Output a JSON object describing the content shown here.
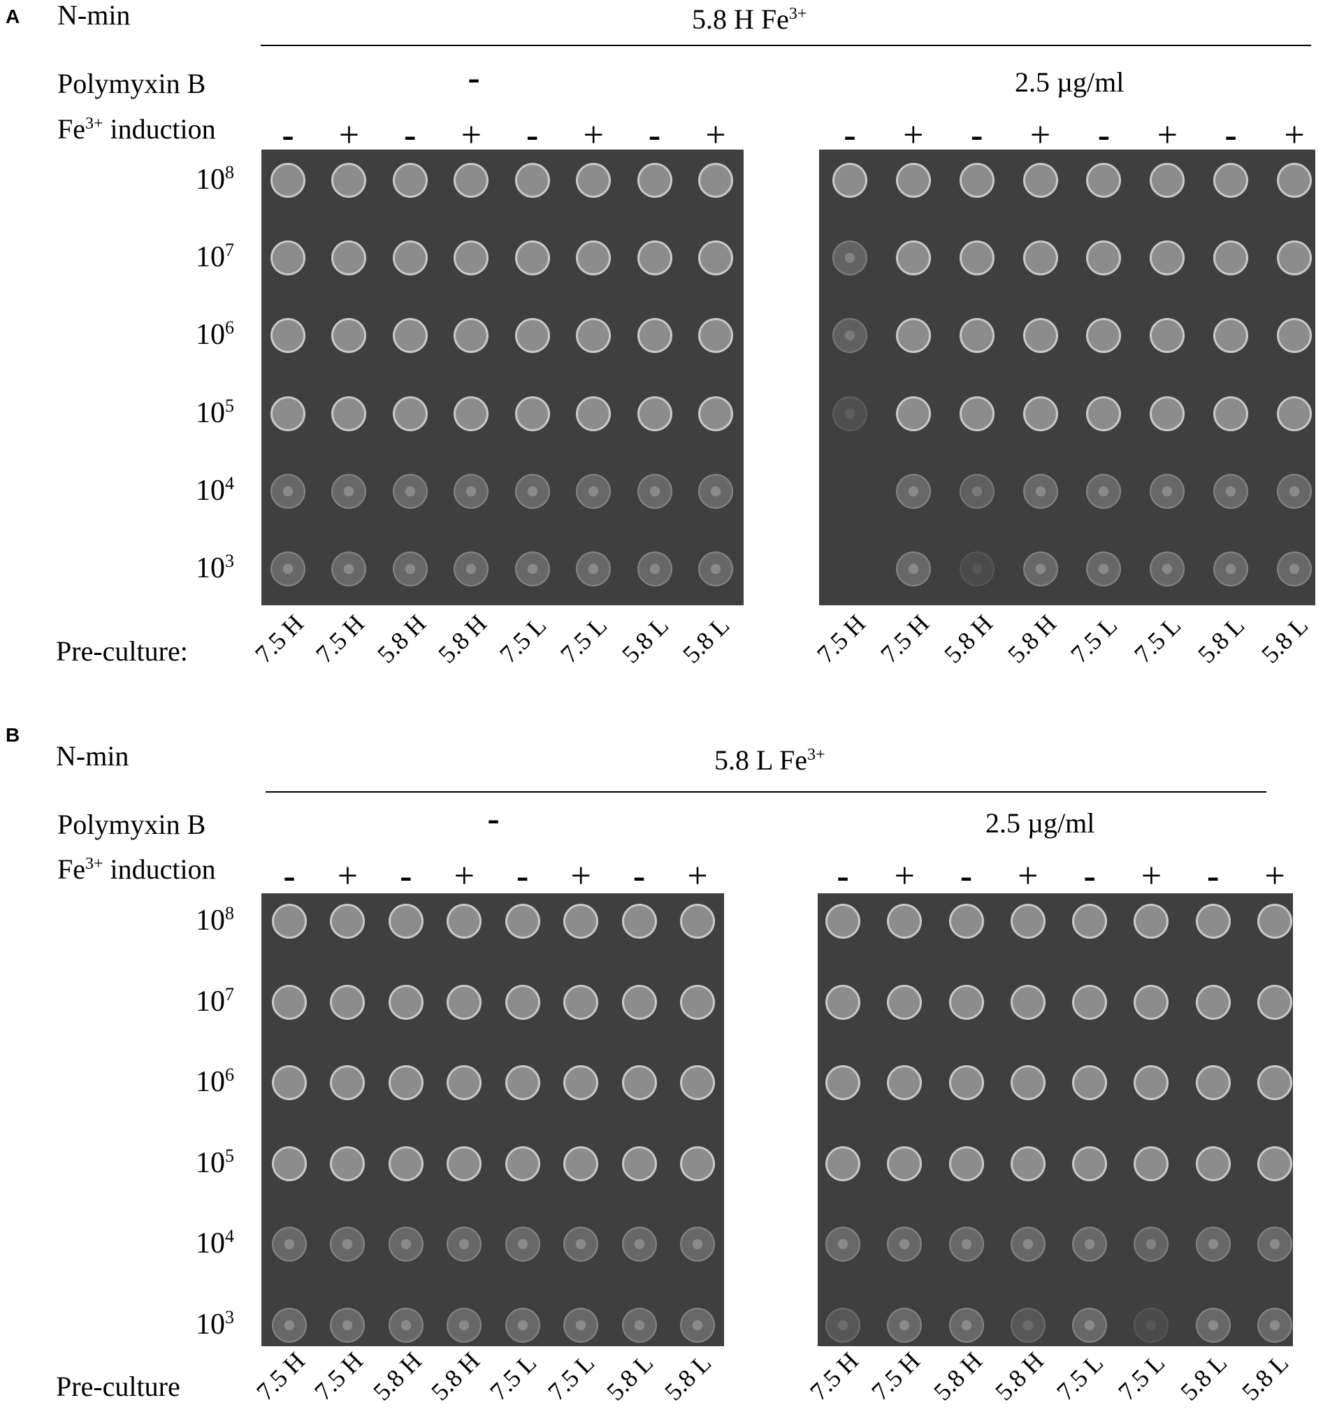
{
  "panels": [
    {
      "letter": "A",
      "nmin_label": "N-min",
      "condition": "5.8 H Fe",
      "condition_sup": "3+",
      "polymyxin_label": "Polymyxin B",
      "polymyxin_values": [
        "-",
        "2.5 µg/ml"
      ],
      "fe_label": "Fe",
      "fe_label_sup": "3+",
      "fe_label_rest": " induction",
      "fe_signs": [
        "-",
        "+",
        "-",
        "+",
        "-",
        "+",
        "-",
        "+"
      ],
      "dilutions": [
        "8",
        "7",
        "6",
        "5",
        "4",
        "3"
      ],
      "dilution_base": "10",
      "preculture_label": "Pre-culture:",
      "precultures": [
        "7.5 H",
        "7.5 H",
        "5.8 H",
        "5.8 H",
        "7.5 L",
        "7.5 L",
        "5.8 L",
        "5.8 L"
      ],
      "growth": [
        [
          [
            1,
            1,
            1,
            1,
            1,
            1
          ],
          [
            1,
            1,
            1,
            1,
            1,
            1
          ],
          [
            1,
            1,
            1,
            1,
            1,
            1
          ],
          [
            1,
            1,
            1,
            1,
            1,
            1
          ],
          [
            1,
            1,
            1,
            1,
            1,
            1
          ],
          [
            1,
            1,
            1,
            1,
            1,
            1
          ],
          [
            1,
            1,
            1,
            1,
            1,
            1
          ],
          [
            1,
            1,
            1,
            1,
            1,
            1
          ]
        ],
        [
          [
            1,
            0.9,
            0.8,
            0.4,
            0,
            0
          ],
          [
            1,
            1,
            1,
            1,
            1,
            1
          ],
          [
            1,
            1,
            1,
            1,
            0.8,
            0.3
          ],
          [
            1,
            1,
            1,
            1,
            1,
            1
          ],
          [
            1,
            1,
            1,
            1,
            1,
            1
          ],
          [
            1,
            1,
            1,
            1,
            1,
            1
          ],
          [
            1,
            1,
            1,
            1,
            1,
            1
          ],
          [
            1,
            1,
            1,
            1,
            1,
            1
          ]
        ]
      ]
    },
    {
      "letter": "B",
      "nmin_label": "N-min",
      "condition": "5.8 L Fe",
      "condition_sup": "3+",
      "polymyxin_label": "Polymyxin B",
      "polymyxin_values": [
        "-",
        "2.5 µg/ml"
      ],
      "fe_label": "Fe",
      "fe_label_sup": "3+",
      "fe_label_rest": " induction",
      "fe_signs": [
        "-",
        "+",
        "-",
        "+",
        "-",
        "+",
        "-",
        "+"
      ],
      "dilutions": [
        "8",
        "7",
        "6",
        "5",
        "4",
        "3"
      ],
      "dilution_base": "10",
      "preculture_label": "Pre-culture",
      "precultures": [
        "7.5 H",
        "7.5 H",
        "5.8 H",
        "5.8 H",
        "7.5 L",
        "7.5 L",
        "5.8 L",
        "5.8 L"
      ],
      "growth": [
        [
          [
            1,
            1,
            1,
            1,
            1,
            1
          ],
          [
            1,
            1,
            1,
            1,
            1,
            1
          ],
          [
            1,
            1,
            1,
            1,
            1,
            1
          ],
          [
            1,
            1,
            1,
            1,
            1,
            1
          ],
          [
            1,
            1,
            1,
            1,
            1,
            1
          ],
          [
            1,
            1,
            1,
            1,
            1,
            1
          ],
          [
            1,
            1,
            1,
            1,
            1,
            1
          ],
          [
            1,
            1,
            1,
            1,
            1,
            1
          ]
        ],
        [
          [
            1,
            1,
            1,
            1,
            1,
            0.6
          ],
          [
            1,
            1,
            1,
            1,
            1,
            1
          ],
          [
            1,
            1,
            1,
            1,
            1,
            1
          ],
          [
            1,
            1,
            1,
            1,
            1,
            0.6
          ],
          [
            1,
            1,
            1,
            1,
            1,
            1
          ],
          [
            1,
            1,
            1,
            1,
            0.9,
            0.3
          ],
          [
            1,
            1,
            1,
            1,
            1,
            1
          ],
          [
            1,
            1,
            1,
            1,
            1,
            1
          ]
        ]
      ]
    }
  ],
  "colors": {
    "plate": "#3f3f3f",
    "colony": "#8c8c8c",
    "colony_rim": "#c8c8c8"
  }
}
